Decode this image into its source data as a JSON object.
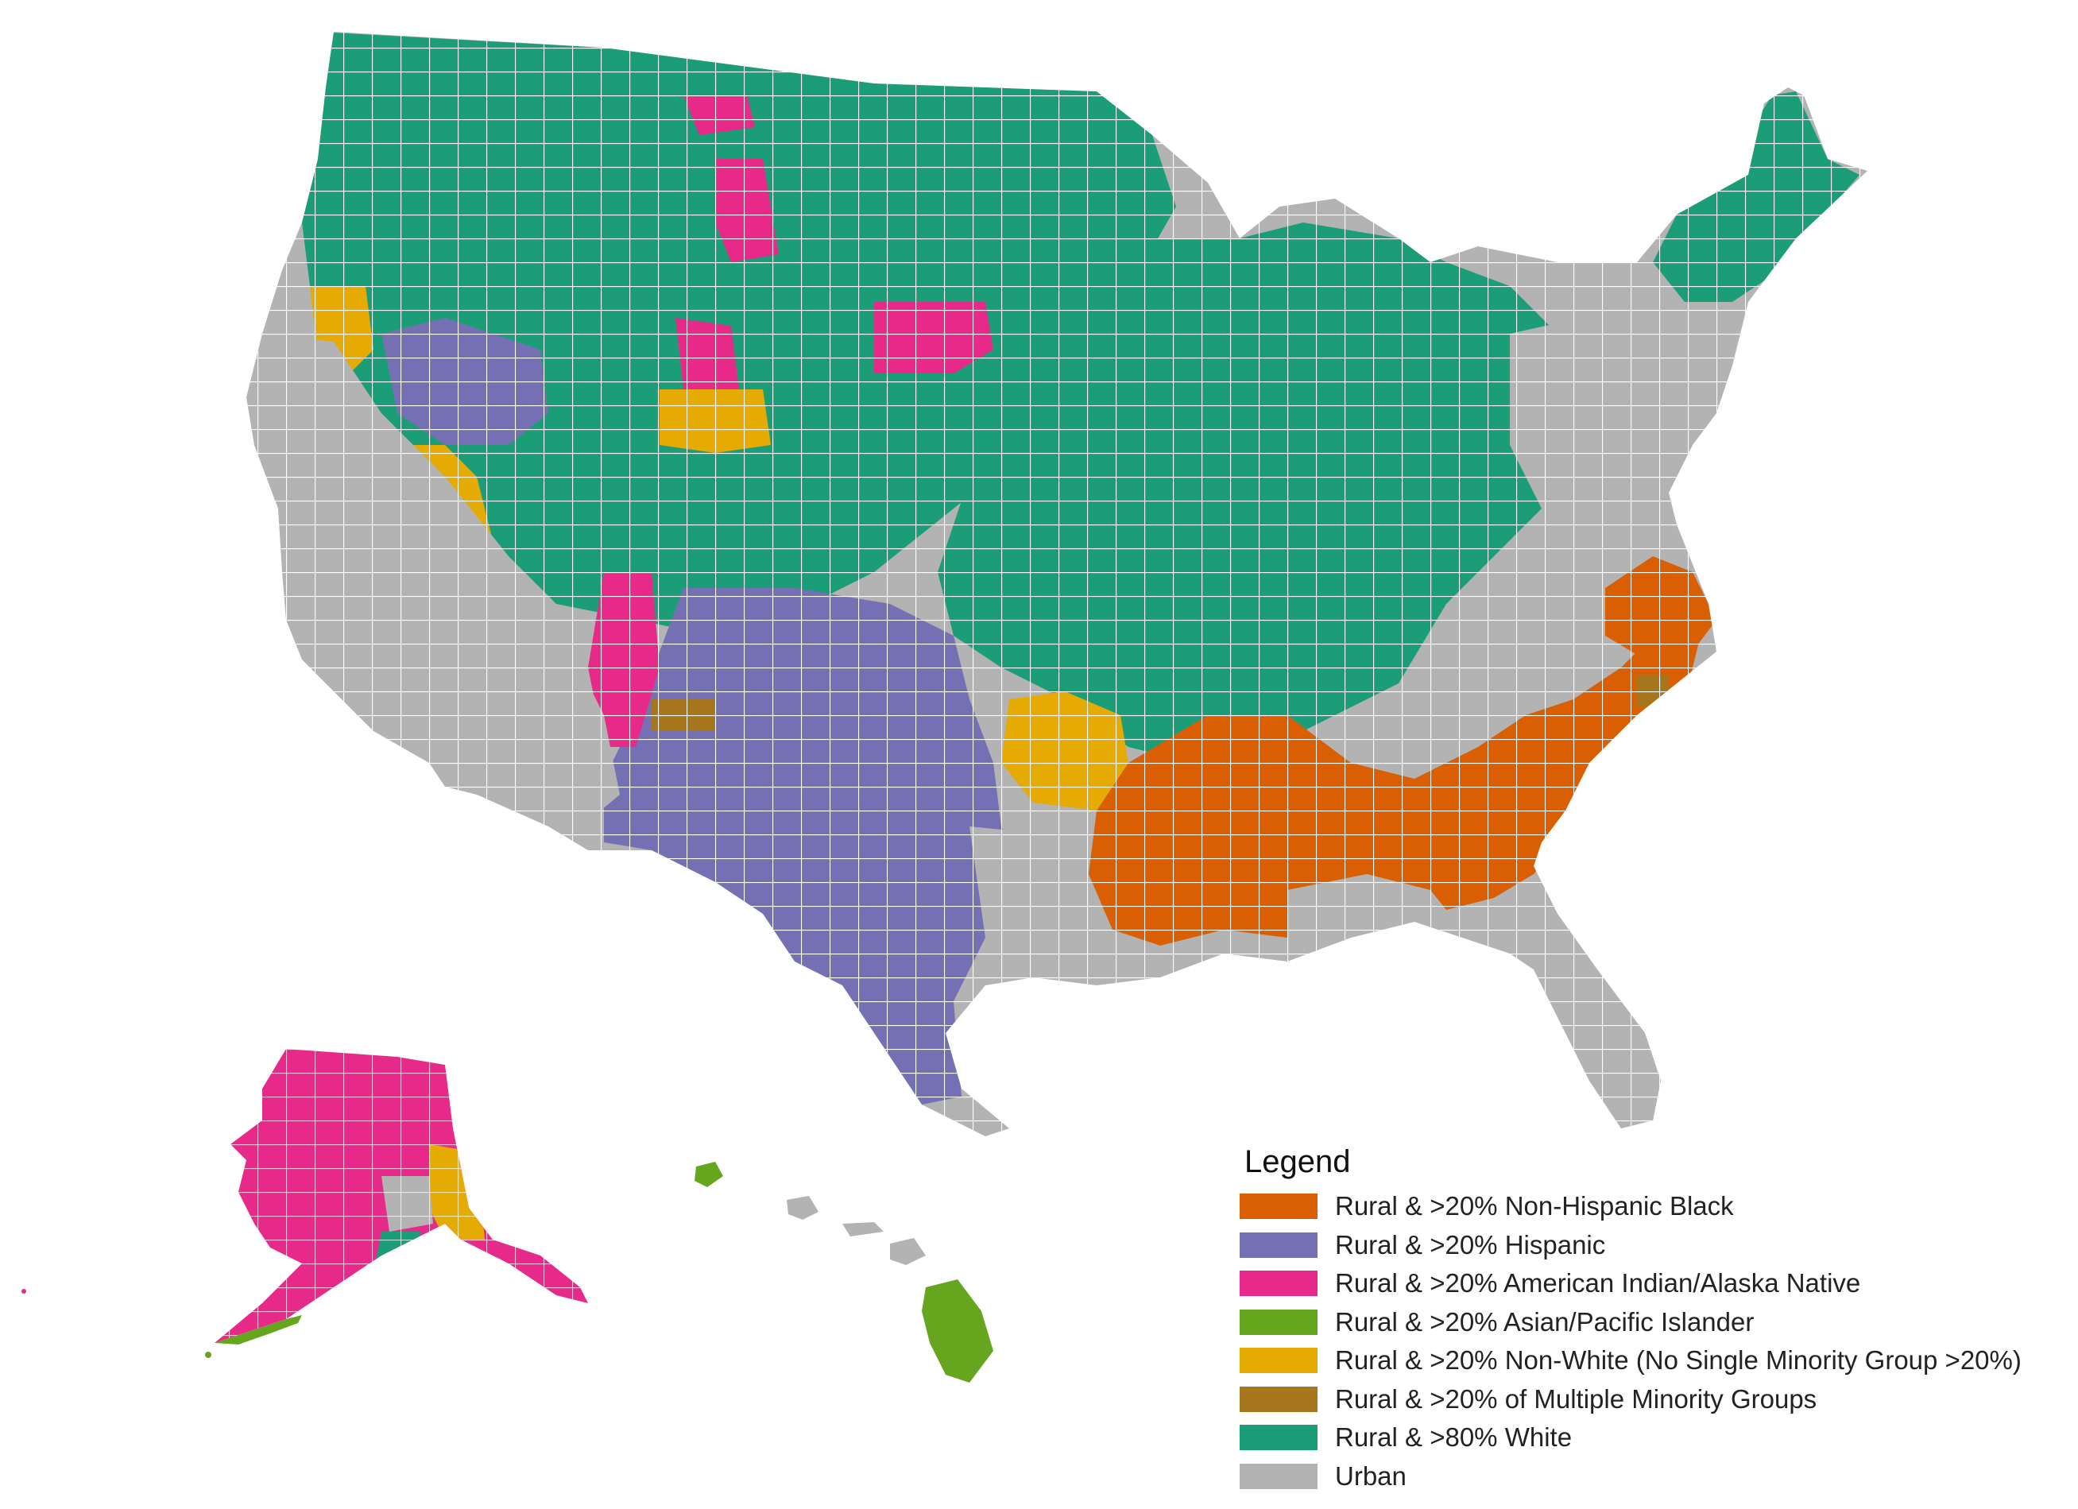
{
  "legend": {
    "title": "Legend",
    "items": [
      {
        "label": "Rural & >20% Non-Hispanic Black",
        "color": "#d95f02"
      },
      {
        "label": "Rural & >20% Hispanic",
        "color": "#7570b3"
      },
      {
        "label": "Rural & >20% American Indian/Alaska Native",
        "color": "#e7298a"
      },
      {
        "label": "Rural & >20% Asian/Pacific Islander",
        "color": "#66a61e"
      },
      {
        "label": "Rural & >20% Non-White (No Single Minority Group >20%)",
        "color": "#e6ab02"
      },
      {
        "label": "Rural & >20% of Multiple Minority Groups",
        "color": "#a6761d"
      },
      {
        "label": "Rural & >80% White",
        "color": "#1b9e77"
      },
      {
        "label": "Urban",
        "color": "#b3b3b3"
      }
    ]
  },
  "regions": {
    "conus": "Contiguous United States",
    "alaska": "Alaska",
    "hawaii": "Hawaii"
  }
}
